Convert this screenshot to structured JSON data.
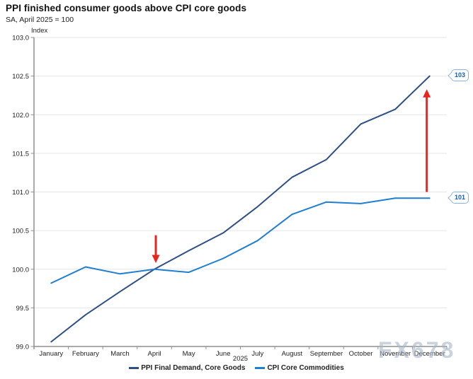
{
  "header": {
    "title": "PPI finished consumer goods above CPI core goods",
    "subtitle": "SA, April 2025 = 100"
  },
  "watermark": "FX678",
  "chart_data": {
    "type": "line",
    "title": "PPI finished consumer goods above CPI core goods",
    "subtitle": "SA, April 2025 = 100",
    "ylabel": "Index",
    "x_group_label": "2025",
    "ylim": [
      99.0,
      103.0
    ],
    "y_ticks": [
      103.0,
      102.5,
      102.0,
      101.5,
      101.0,
      100.5,
      100.0,
      99.5,
      99.0
    ],
    "grid": true,
    "legend_position": "bottom",
    "categories": [
      "January",
      "February",
      "March",
      "April",
      "May",
      "June",
      "July",
      "August",
      "September",
      "October",
      "November",
      "December"
    ],
    "series": [
      {
        "name": "PPI Final Demand, Core Goods",
        "color": "#2e5087",
        "values": [
          99.06,
          99.41,
          99.71,
          100.0,
          100.24,
          100.47,
          100.81,
          101.19,
          101.42,
          101.88,
          102.07,
          102.5
        ]
      },
      {
        "name": "CPI Core Commodities",
        "color": "#1e7fd2",
        "values": [
          99.82,
          100.03,
          99.94,
          100.0,
          99.96,
          100.14,
          100.37,
          100.71,
          100.87,
          100.85,
          100.92,
          100.92
        ]
      }
    ],
    "annotations": [
      {
        "type": "arrow",
        "direction": "down",
        "month": "April",
        "month_index": 3,
        "from_value": 100.44,
        "to_value": 100.08,
        "color": "#e8261f"
      },
      {
        "type": "arrow",
        "direction": "up",
        "month": "December",
        "month_index": 11,
        "from_value": 101.0,
        "to_value": 102.33,
        "color": "#e8261f"
      }
    ],
    "end_labels": [
      {
        "series": "PPI Final Demand, Core Goods",
        "text": "103"
      },
      {
        "series": "CPI Core Commodities",
        "text": "101"
      }
    ]
  }
}
